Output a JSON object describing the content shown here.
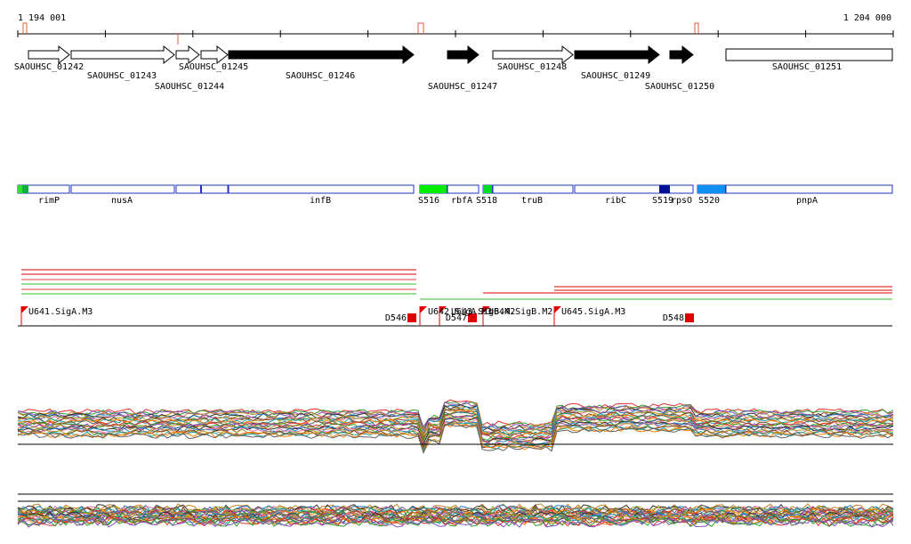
{
  "ruler": {
    "start": "1 194 001",
    "end": "1 204 000"
  },
  "genes": [
    "SAOUHSC_01242",
    "SAOUHSC_01243",
    "SAOUHSC_01244",
    "SAOUHSC_01245",
    "SAOUHSC_01246",
    "SAOUHSC_01247",
    "SAOUHSC_01248",
    "SAOUHSC_01249",
    "SAOUHSC_01250",
    "SAOUHSC_01251"
  ],
  "features": [
    "rimP",
    "nusA",
    "infB",
    "S516",
    "rbfA",
    "S518",
    "truB",
    "ribC",
    "S519",
    "rpsO",
    "S520",
    "pnpA"
  ],
  "promoters": [
    "U641.SigA.M3",
    "D546",
    "U642.SigA.M3",
    "D547",
    "U643.SigB.M2",
    "U644.SigB.M2",
    "U645.SigA.M3",
    "D548"
  ]
}
